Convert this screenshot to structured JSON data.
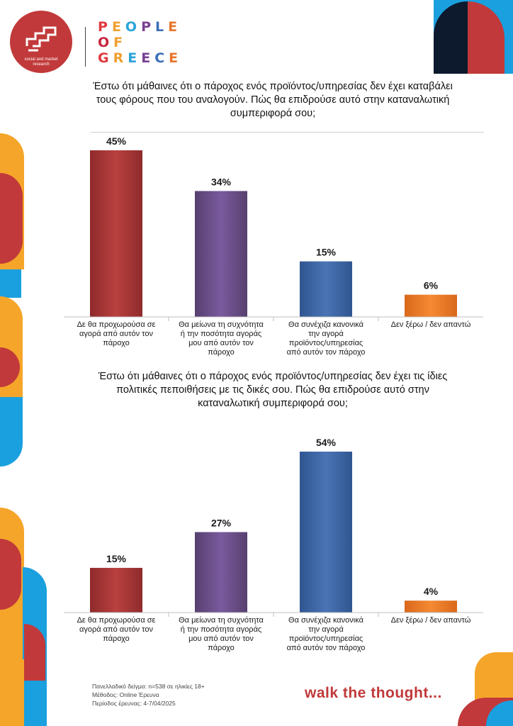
{
  "logo": {
    "subtitle_line1": "social and market",
    "subtitle_line2": "research"
  },
  "brand": {
    "line1": "PEOPLE",
    "line2": "OF",
    "line3": "GREECE",
    "letter_colors": [
      "#e0393e",
      "#f0a030",
      "#2aa4d8",
      "#7a3f93",
      "#3a6fb8",
      "#e8762c",
      "#c7263e",
      "#f0a030"
    ]
  },
  "colors": {
    "red": "#b03236",
    "purple": "#6b4f8f",
    "blue": "#3d67a8",
    "orange": "#ee7a22",
    "accent_red": "#c1393a",
    "accent_yellow": "#f5a52a",
    "accent_blue": "#1aa0de",
    "navy": "#0d1a2e"
  },
  "chart_data": [
    {
      "type": "bar",
      "title": "Έστω ότι μάθαινες ότι ο πάροχος ενός προϊόντος/υπηρεσίας δεν έχει καταβάλει τους φόρους που του αναλογούν. Πώς θα επιδρούσε αυτό στην καταναλωτική συμπεριφορά σου;",
      "categories": [
        "Δε θα προχωρούσα σε αγορά από αυτόν τον πάροχο",
        "Θα μείωνα τη συχνότητα ή την ποσότητα αγοράς μου από αυτόν τον πάροχο",
        "Θα συνέχιζα κανονικά την αγορά προϊόντος/υπηρεσίας από αυτόν τον πάροχο",
        "Δεν ξέρω / δεν απαντώ"
      ],
      "category_lines": [
        [
          "Δε θα προχωρούσα σε",
          "αγορά από αυτόν τον",
          "πάροχο"
        ],
        [
          "Θα μείωνα τη συχνότητα",
          "ή την ποσότητα αγοράς",
          "μου από αυτόν τον",
          "πάροχο"
        ],
        [
          "Θα συνέχιζα κανονικά",
          "την αγορά",
          "προϊόντος/υπηρεσίας",
          "από αυτόν τον πάροχο"
        ],
        [
          "Δεν ξέρω / δεν απαντώ"
        ]
      ],
      "values": [
        45,
        34,
        15,
        6
      ],
      "labels": [
        "45%",
        "34%",
        "15%",
        "6%"
      ],
      "ylim": [
        0,
        100
      ],
      "unit": "%"
    },
    {
      "type": "bar",
      "title": "Έστω ότι μάθαινες ότι ο πάροχος ενός προϊόντος/υπηρεσίας δεν έχει τις ίδιες πολιτικές πεποιθήσεις με τις δικές σου. Πώς θα επιδρούσε αυτό στην καταναλωτική συμπεριφορά σου;",
      "categories": [
        "Δε θα προχωρούσα σε αγορά από αυτόν τον πάροχο",
        "Θα μείωνα τη συχνότητα ή την ποσότητα αγοράς μου από αυτόν τον πάροχο",
        "Θα συνέχιζα κανονικά την αγορά προϊόντος/υπηρεσίας από αυτόν τον πάροχο",
        "Δεν ξέρω / δεν απαντώ"
      ],
      "category_lines": [
        [
          "Δε θα προχωρούσα σε",
          "αγορά από αυτόν τον",
          "πάροχο"
        ],
        [
          "Θα μείωνα τη συχνότητα",
          "ή την ποσότητα αγοράς",
          "μου από αυτόν τον",
          "πάροχο"
        ],
        [
          "Θα συνέχιζα κανονικά",
          "την αγορά",
          "προϊόντος/υπηρεσίας",
          "από αυτόν τον πάροχο"
        ],
        [
          "Δεν ξέρω / δεν απαντώ"
        ]
      ],
      "values": [
        15,
        27,
        54,
        4
      ],
      "labels": [
        "15%",
        "27%",
        "54%",
        "4%"
      ],
      "ylim": [
        0,
        100
      ],
      "unit": "%"
    }
  ],
  "footnote": {
    "line1": "Πανελλαδικό δείγμα: n=538 σε ηλικίες 18+",
    "line2": "Μέθοδος: Online Έρευνα",
    "line3": "Περίοδος έρευνας: 4-7/04/2025"
  },
  "tagline": "walk the thought..."
}
